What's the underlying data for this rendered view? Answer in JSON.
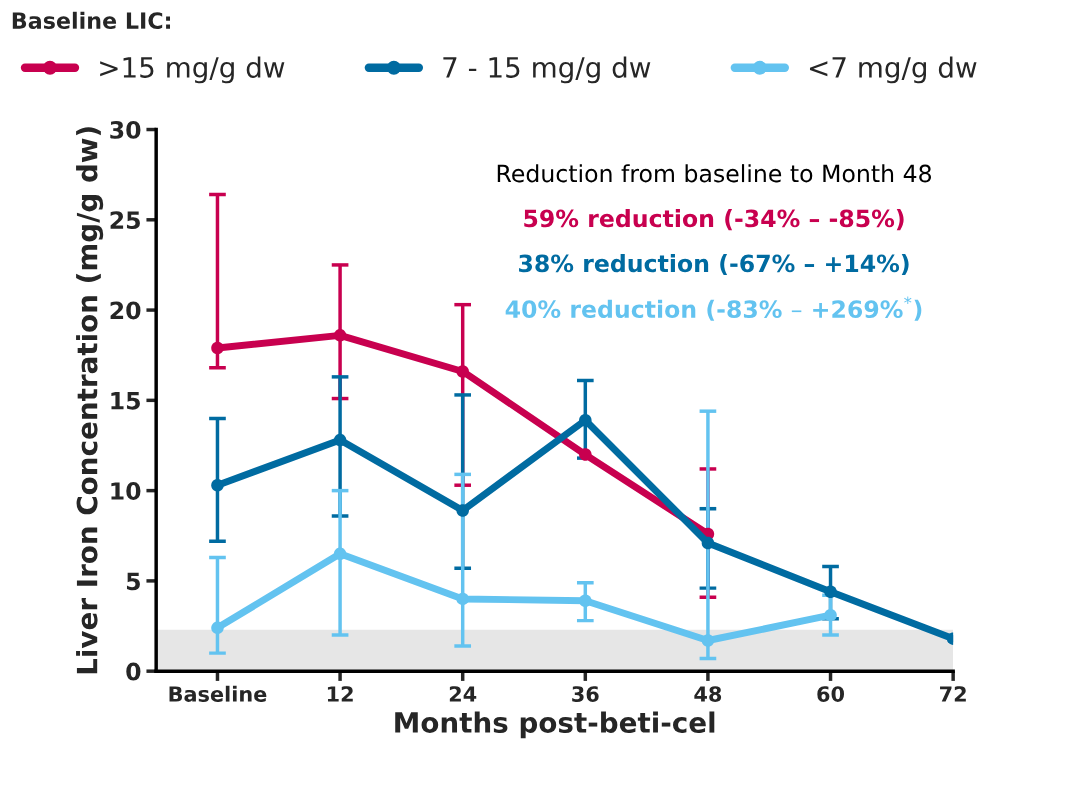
{
  "chart_data": {
    "type": "line",
    "legend_title": "Baseline LIC:",
    "legend": "top",
    "marker": "circle",
    "line_style": "solid",
    "grid": false,
    "xlabel": "Months post-beti-cel",
    "ylabel": "Liver Iron Concentration (mg/g dw)",
    "x": [
      0,
      12,
      24,
      36,
      48,
      60,
      72
    ],
    "xlim": [
      -6,
      72
    ],
    "xticks": [
      {
        "value": 0,
        "label": "Baseline"
      },
      12,
      24,
      36,
      48,
      60,
      72
    ],
    "ylim": [
      0,
      30
    ],
    "yticks": [
      0,
      5,
      10,
      15,
      20,
      25,
      30
    ],
    "series": [
      {
        "name": ">15 mg/g dw",
        "color": "#c8004f",
        "values": [
          17.9,
          18.6,
          16.6,
          12.0,
          7.6,
          null,
          null
        ],
        "errors": [
          [
            16.8,
            26.4
          ],
          [
            15.1,
            22.5
          ],
          [
            10.3,
            20.3
          ],
          null,
          [
            4.1,
            11.2
          ],
          null,
          null
        ]
      },
      {
        "name": "7 - 15 mg/g dw",
        "color": "#006ba1",
        "values": [
          10.3,
          12.8,
          8.9,
          13.9,
          7.1,
          4.4,
          1.8
        ],
        "errors": [
          [
            7.2,
            14.0
          ],
          [
            8.6,
            16.3
          ],
          [
            5.7,
            15.3
          ],
          [
            11.8,
            16.1
          ],
          [
            4.6,
            9.0
          ],
          [
            2.9,
            5.8
          ],
          null
        ]
      },
      {
        "name": "<7 mg/g dw",
        "color": "#63c3f0",
        "values": [
          2.4,
          6.5,
          4.0,
          3.9,
          1.7,
          3.1,
          null
        ],
        "errors": [
          [
            1.0,
            6.3
          ],
          [
            2.0,
            10.0
          ],
          [
            1.4,
            10.9
          ],
          [
            2.8,
            4.9
          ],
          [
            0.7,
            14.4
          ],
          [
            2.0,
            4.2
          ],
          null
        ]
      }
    ],
    "bands": [
      {
        "axis": "y",
        "from": 0,
        "to": 2.3,
        "color": "#e6e6e6"
      }
    ],
    "annotations": [
      "Reduction from baseline to Month 48",
      "59% reduction (-34% – -85%)",
      "38% reduction (-67% – +14%)",
      "40% reduction (-83% – +269%$^{*}$)"
    ]
  }
}
